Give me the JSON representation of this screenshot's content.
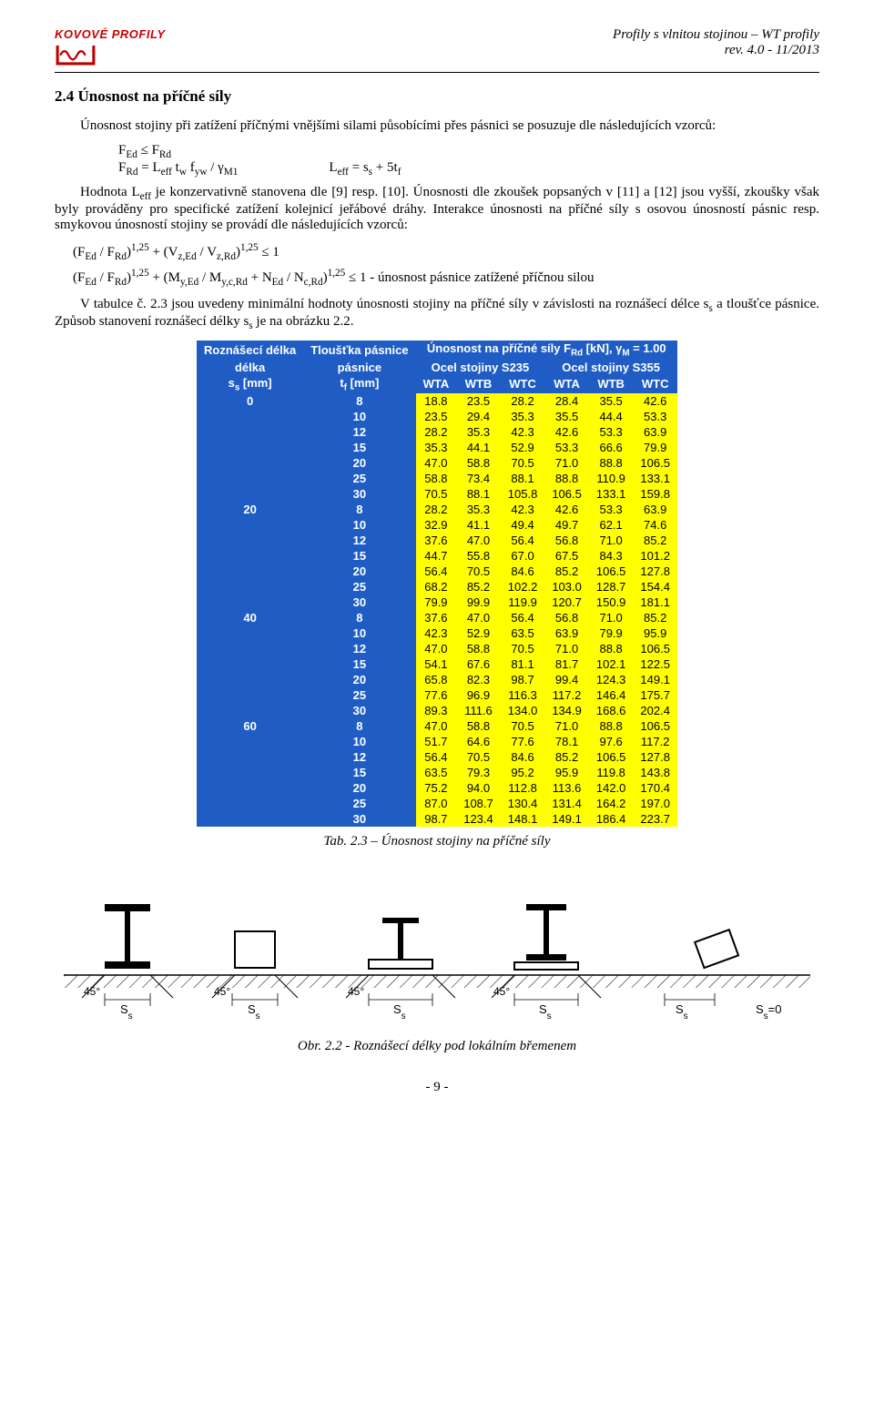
{
  "header": {
    "logo_text": "KOVOVÉ PROFILY",
    "right_line1": "Profily s vlnitou stojinou – WT profily",
    "right_line2": "rev. 4.0 - 11/2013"
  },
  "section": {
    "heading": "2.4 Únosnost na příčné síly",
    "para1": "Únosnost stojiny při zatížení příčnými vnějšími silami působícími přes pásnici se posuzuje dle následujících vzorců:",
    "form1": "Fₑd ≤ Fʀd",
    "form2_left": "Fʀd = Lₑff tw fyw / γₘ₁",
    "form2_right": "Lₑff = sₛ + 5tf",
    "para2": "Hodnota Lₑff je konzervativně stanovena dle [9] resp. [10]. Únosnosti dle zkoušek popsaných v [11] a [12] jsou vyšší, zkoušky však byly prováděny pro specifické zatížení kolejnicí jeřábové dráhy. Interakce únosnosti na příčné síly s osovou únosností pásnic resp. smykovou únosností stojiny se provádí dle následujících vzorců:",
    "form3": "(Fₑd / Fʀd)¹˙²⁵ + (Vz,ₑd / Vz,ʀd)¹˙²⁵ ≤ 1",
    "form4": "(Fₑd / Fʀd)¹˙²⁵ + (My,ₑd / My,c,ʀd + Nₑd / Nc,ʀd)¹˙²⁵ ≤ 1 - únosnost pásnice zatížené příčnou silou",
    "para3": "V tabulce č. 2.3 jsou uvedeny minimální hodnoty únosnosti stojiny na příčné síly v závislosti na roznášecí délce sₛ a tloušťce pásnice. Způsob stanovení roznášecí délky sₛ je na obrázku 2.2."
  },
  "table": {
    "title": "Únosnost na příčné síly Fʀd [kN], γₘ = 1.00",
    "col_group_left": "Ocel stojiny S235",
    "col_group_right": "Ocel stojiny S355",
    "h_ss": "Roznášecí délka",
    "h_ss2": "sₛ [mm]",
    "h_tf": "Tloušťka pásnice",
    "h_tf2": "tf [mm]",
    "steel_cols": [
      "WTA",
      "WTB",
      "WTC",
      "WTA",
      "WTB",
      "WTC"
    ],
    "groups": [
      {
        "ss": "0",
        "rows": [
          {
            "tf": "8",
            "v": [
              "18.8",
              "23.5",
              "28.2",
              "28.4",
              "35.5",
              "42.6"
            ]
          },
          {
            "tf": "10",
            "v": [
              "23.5",
              "29.4",
              "35.3",
              "35.5",
              "44.4",
              "53.3"
            ]
          },
          {
            "tf": "12",
            "v": [
              "28.2",
              "35.3",
              "42.3",
              "42.6",
              "53.3",
              "63.9"
            ]
          },
          {
            "tf": "15",
            "v": [
              "35.3",
              "44.1",
              "52.9",
              "53.3",
              "66.6",
              "79.9"
            ]
          },
          {
            "tf": "20",
            "v": [
              "47.0",
              "58.8",
              "70.5",
              "71.0",
              "88.8",
              "106.5"
            ]
          },
          {
            "tf": "25",
            "v": [
              "58.8",
              "73.4",
              "88.1",
              "88.8",
              "110.9",
              "133.1"
            ]
          },
          {
            "tf": "30",
            "v": [
              "70.5",
              "88.1",
              "105.8",
              "106.5",
              "133.1",
              "159.8"
            ]
          }
        ]
      },
      {
        "ss": "20",
        "rows": [
          {
            "tf": "8",
            "v": [
              "28.2",
              "35.3",
              "42.3",
              "42.6",
              "53.3",
              "63.9"
            ]
          },
          {
            "tf": "10",
            "v": [
              "32.9",
              "41.1",
              "49.4",
              "49.7",
              "62.1",
              "74.6"
            ]
          },
          {
            "tf": "12",
            "v": [
              "37.6",
              "47.0",
              "56.4",
              "56.8",
              "71.0",
              "85.2"
            ]
          },
          {
            "tf": "15",
            "v": [
              "44.7",
              "55.8",
              "67.0",
              "67.5",
              "84.3",
              "101.2"
            ]
          },
          {
            "tf": "20",
            "v": [
              "56.4",
              "70.5",
              "84.6",
              "85.2",
              "106.5",
              "127.8"
            ]
          },
          {
            "tf": "25",
            "v": [
              "68.2",
              "85.2",
              "102.2",
              "103.0",
              "128.7",
              "154.4"
            ]
          },
          {
            "tf": "30",
            "v": [
              "79.9",
              "99.9",
              "119.9",
              "120.7",
              "150.9",
              "181.1"
            ]
          }
        ]
      },
      {
        "ss": "40",
        "rows": [
          {
            "tf": "8",
            "v": [
              "37.6",
              "47.0",
              "56.4",
              "56.8",
              "71.0",
              "85.2"
            ]
          },
          {
            "tf": "10",
            "v": [
              "42.3",
              "52.9",
              "63.5",
              "63.9",
              "79.9",
              "95.9"
            ]
          },
          {
            "tf": "12",
            "v": [
              "47.0",
              "58.8",
              "70.5",
              "71.0",
              "88.8",
              "106.5"
            ]
          },
          {
            "tf": "15",
            "v": [
              "54.1",
              "67.6",
              "81.1",
              "81.7",
              "102.1",
              "122.5"
            ]
          },
          {
            "tf": "20",
            "v": [
              "65.8",
              "82.3",
              "98.7",
              "99.4",
              "124.3",
              "149.1"
            ]
          },
          {
            "tf": "25",
            "v": [
              "77.6",
              "96.9",
              "116.3",
              "117.2",
              "146.4",
              "175.7"
            ]
          },
          {
            "tf": "30",
            "v": [
              "89.3",
              "111.6",
              "134.0",
              "134.9",
              "168.6",
              "202.4"
            ]
          }
        ]
      },
      {
        "ss": "60",
        "rows": [
          {
            "tf": "8",
            "v": [
              "47.0",
              "58.8",
              "70.5",
              "71.0",
              "88.8",
              "106.5"
            ]
          },
          {
            "tf": "10",
            "v": [
              "51.7",
              "64.6",
              "77.6",
              "78.1",
              "97.6",
              "117.2"
            ]
          },
          {
            "tf": "12",
            "v": [
              "56.4",
              "70.5",
              "84.6",
              "85.2",
              "106.5",
              "127.8"
            ]
          },
          {
            "tf": "15",
            "v": [
              "63.5",
              "79.3",
              "95.2",
              "95.9",
              "119.8",
              "143.8"
            ]
          },
          {
            "tf": "20",
            "v": [
              "75.2",
              "94.0",
              "112.8",
              "113.6",
              "142.0",
              "170.4"
            ]
          },
          {
            "tf": "25",
            "v": [
              "87.0",
              "108.7",
              "130.4",
              "131.4",
              "164.2",
              "197.0"
            ]
          },
          {
            "tf": "30",
            "v": [
              "98.7",
              "123.4",
              "148.1",
              "149.1",
              "186.4",
              "223.7"
            ]
          }
        ]
      }
    ],
    "caption": "Tab. 2.3 – Únosnost stojiny na příčné síly"
  },
  "diagram": {
    "angle": "45°",
    "ss": "Sₛ",
    "ss0": "Sₛ=0",
    "caption": "Obr.  2.2 - Roznášecí délky pod lokálním břemenem"
  },
  "footer": {
    "page": "- 9 -"
  },
  "colors": {
    "logo_red": "#c00000",
    "header_blue": "#1f5dc5",
    "cell_yellow": "#ffff00"
  }
}
